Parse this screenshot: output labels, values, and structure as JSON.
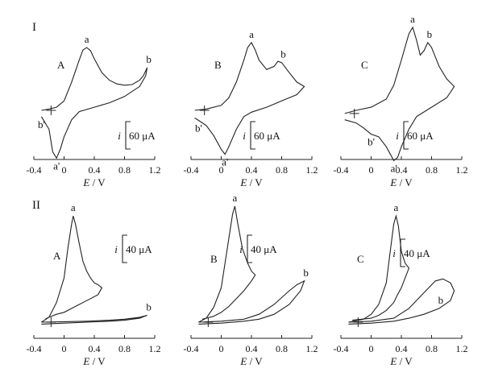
{
  "figure": {
    "rows": [
      {
        "id": "I",
        "label": "I"
      },
      {
        "id": "II",
        "label": "II"
      }
    ],
    "scale_bars": {
      "I": {
        "symbol": "i",
        "value": "60 μA"
      },
      "II": {
        "symbol": "i",
        "value": "40 μA"
      }
    }
  },
  "chart_data": [
    {
      "type": "line",
      "row": "I",
      "panel": "A",
      "xlabel_var": "E",
      "xlabel_unit": "V",
      "xlim": [
        -0.4,
        1.2
      ],
      "xticks": [
        "-0.4",
        "0",
        "0.4",
        "0.8",
        "1.2"
      ],
      "scale_bar": "60 μA",
      "peaks": [
        {
          "label": "a",
          "E": 0.3
        },
        {
          "label": "b",
          "E": 1.1
        },
        {
          "label": "b'",
          "E": -0.32
        },
        {
          "label": "a'",
          "E": -0.12
        }
      ],
      "series": [
        {
          "x": [
            -0.3,
            -0.2,
            -0.1,
            0.0,
            0.1,
            0.2,
            0.25,
            0.3,
            0.35,
            0.4,
            0.5,
            0.6,
            0.7,
            0.8,
            0.9,
            1.0,
            1.05,
            1.1,
            1.08,
            1.0,
            0.8,
            0.6,
            0.4,
            0.2,
            0.1,
            0.0,
            -0.05,
            -0.1,
            -0.15,
            -0.2,
            -0.3
          ],
          "y": [
            0.0,
            2,
            5,
            15,
            45,
            80,
            96,
            100,
            95,
            82,
            60,
            48,
            42,
            40,
            41,
            48,
            55,
            68,
            55,
            38,
            22,
            12,
            5,
            -2,
            -15,
            -42,
            -62,
            -76,
            -66,
            -30,
            -10
          ]
        }
      ]
    },
    {
      "type": "line",
      "row": "I",
      "panel": "B",
      "xlabel_var": "E",
      "xlabel_unit": "V",
      "xlim": [
        -0.4,
        1.2
      ],
      "xticks": [
        "-0.4",
        "0",
        "0.4",
        "0.8",
        "1.2"
      ],
      "scale_bar": "60 μA",
      "peaks": [
        {
          "label": "a",
          "E": 0.4
        },
        {
          "label": "b",
          "E": 0.78
        },
        {
          "label": "b'",
          "E": -0.3
        },
        {
          "label": "a'",
          "E": 0.07
        }
      ],
      "series": [
        {
          "x": [
            -0.35,
            -0.2,
            0.0,
            0.1,
            0.2,
            0.3,
            0.35,
            0.4,
            0.45,
            0.5,
            0.6,
            0.7,
            0.75,
            0.8,
            0.9,
            1.0,
            1.1,
            1.0,
            0.8,
            0.6,
            0.4,
            0.3,
            0.2,
            0.1,
            0.05,
            0.0,
            -0.1,
            -0.2,
            -0.3,
            -0.35
          ],
          "y": [
            0.0,
            2,
            8,
            20,
            45,
            80,
            100,
            108,
            96,
            80,
            65,
            70,
            78,
            76,
            60,
            45,
            38,
            25,
            15,
            5,
            -3,
            -10,
            -30,
            -58,
            -70,
            -62,
            -40,
            -24,
            -16,
            -12
          ]
        }
      ]
    },
    {
      "type": "line",
      "row": "I",
      "panel": "C",
      "xlabel_var": "E",
      "xlabel_unit": "V",
      "xlim": [
        -0.4,
        1.2
      ],
      "xticks": [
        "-0.4",
        "0",
        "0.4",
        "0.8",
        "1.2"
      ],
      "scale_bar": "60 μA",
      "peaks": [
        {
          "label": "a",
          "E": 0.55
        },
        {
          "label": "b",
          "E": 0.75
        },
        {
          "label": "b'",
          "E": -0.02
        },
        {
          "label": "a'",
          "E": 0.32
        }
      ],
      "series": [
        {
          "x": [
            -0.35,
            -0.2,
            0.0,
            0.2,
            0.3,
            0.4,
            0.5,
            0.55,
            0.6,
            0.65,
            0.7,
            0.75,
            0.8,
            0.9,
            1.0,
            1.1,
            1.0,
            0.8,
            0.6,
            0.5,
            0.4,
            0.35,
            0.3,
            0.2,
            0.1,
            0.0,
            -0.1,
            -0.2,
            -0.35
          ],
          "y": [
            -5,
            0,
            5,
            18,
            40,
            80,
            122,
            132,
            112,
            88,
            95,
            108,
            100,
            70,
            50,
            38,
            20,
            5,
            -10,
            -30,
            -58,
            -75,
            -80,
            -58,
            -42,
            -38,
            -28,
            -20,
            -15
          ]
        }
      ]
    },
    {
      "type": "line",
      "row": "II",
      "panel": "A",
      "xlabel_var": "E",
      "xlabel_unit": "V",
      "xlim": [
        -0.4,
        1.2
      ],
      "xticks": [
        "-0.4",
        "0",
        "0.4",
        "0.8",
        "1.2"
      ],
      "scale_bar": "40 μA",
      "peaks": [
        {
          "label": "a",
          "E": 0.12
        },
        {
          "label": "b",
          "E": 1.1
        }
      ],
      "series": [
        {
          "x": [
            -0.3,
            -0.2,
            -0.1,
            0.0,
            0.05,
            0.1,
            0.12,
            0.15,
            0.2,
            0.25,
            0.3,
            0.35,
            0.4,
            0.45,
            0.5,
            0.45,
            0.3,
            0.2,
            0.1,
            0.0,
            -0.1,
            -0.2,
            -0.25
          ],
          "y": [
            0,
            5,
            20,
            45,
            75,
            100,
            108,
            100,
            80,
            62,
            52,
            45,
            40,
            38,
            35,
            28,
            22,
            18,
            14,
            10,
            8,
            5,
            3
          ]
        },
        {
          "x": [
            -0.3,
            0.0,
            0.3,
            0.6,
            0.8,
            1.0,
            1.1,
            1.0,
            0.8,
            0.6,
            0.3,
            0.0,
            -0.3
          ],
          "y": [
            0,
            0.5,
            1,
            2,
            3,
            5,
            7,
            4,
            2,
            1,
            0,
            -1,
            -2
          ]
        }
      ]
    },
    {
      "type": "line",
      "row": "II",
      "panel": "B",
      "xlabel_var": "E",
      "xlabel_unit": "V",
      "xlim": [
        -0.4,
        1.2
      ],
      "xticks": [
        "-0.4",
        "0",
        "0.4",
        "0.8",
        "1.2"
      ],
      "scale_bar": "40 μA",
      "peaks": [
        {
          "label": "a",
          "E": 0.18
        },
        {
          "label": "b",
          "E": 1.1
        }
      ],
      "series": [
        {
          "x": [
            -0.3,
            -0.2,
            -0.1,
            0.0,
            0.05,
            0.1,
            0.15,
            0.18,
            0.22,
            0.28,
            0.35,
            0.4,
            0.45,
            0.4,
            0.3,
            0.2,
            0.1,
            0.0,
            -0.1,
            -0.25
          ],
          "y": [
            0,
            4,
            15,
            35,
            60,
            85,
            110,
            118,
            100,
            75,
            60,
            52,
            48,
            42,
            32,
            24,
            16,
            10,
            6,
            3
          ]
        },
        {
          "x": [
            -0.3,
            0.0,
            0.3,
            0.5,
            0.7,
            0.9,
            1.0,
            1.1,
            1.05,
            0.9,
            0.7,
            0.5,
            0.3,
            0.0,
            -0.3
          ],
          "y": [
            0,
            1,
            3,
            8,
            18,
            32,
            38,
            42,
            32,
            18,
            8,
            3,
            1,
            -1,
            -2
          ]
        }
      ]
    },
    {
      "type": "line",
      "row": "II",
      "panel": "C",
      "xlabel_var": "E",
      "xlabel_unit": "V",
      "xlim": [
        -0.4,
        1.2
      ],
      "xticks": [
        "-0.4",
        "0",
        "0.4",
        "0.8",
        "1.2"
      ],
      "scale_bar": "40 μA",
      "peaks": [
        {
          "label": "a",
          "E": 0.33
        },
        {
          "label": "b",
          "E": 0.92
        }
      ],
      "series": [
        {
          "x": [
            -0.3,
            -0.1,
            0.0,
            0.1,
            0.2,
            0.25,
            0.3,
            0.33,
            0.36,
            0.4,
            0.45,
            0.5,
            0.45,
            0.4,
            0.35,
            0.3,
            0.2,
            0.1,
            0.0,
            -0.25
          ],
          "y": [
            0,
            3,
            8,
            18,
            40,
            70,
            100,
            108,
            98,
            72,
            60,
            55,
            45,
            35,
            28,
            20,
            12,
            7,
            4,
            2
          ]
        },
        {
          "x": [
            -0.3,
            0.0,
            0.3,
            0.5,
            0.7,
            0.85,
            0.95,
            1.05,
            1.1,
            1.05,
            0.9,
            0.7,
            0.5,
            0.3,
            0.0,
            -0.3
          ],
          "y": [
            0,
            1,
            4,
            14,
            30,
            42,
            44,
            40,
            32,
            22,
            14,
            8,
            4,
            1,
            -1,
            -2
          ]
        }
      ]
    }
  ]
}
